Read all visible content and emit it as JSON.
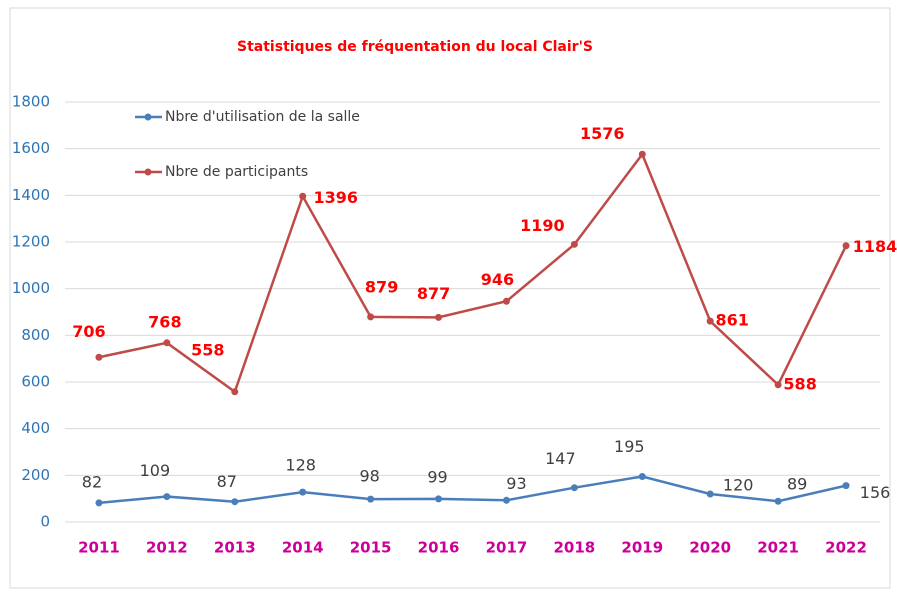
{
  "chart_data": {
    "type": "line",
    "title": "Statistiques de fréquentation du local Clair'S",
    "categories": [
      "2011",
      "2012",
      "2013",
      "2014",
      "2015",
      "2016",
      "2017",
      "2018",
      "2019",
      "2020",
      "2021",
      "2022"
    ],
    "series": [
      {
        "name": "Nbre d'utilisation de la salle",
        "color": "#4a7ebb",
        "values": [
          82,
          109,
          87,
          128,
          98,
          99,
          93,
          147,
          195,
          120,
          89,
          156
        ]
      },
      {
        "name": "Nbre de participants",
        "color": "#be4b48",
        "values": [
          706,
          768,
          558,
          1396,
          879,
          877,
          946,
          1190,
          1576,
          861,
          588,
          1184
        ]
      }
    ],
    "ylim": [
      0,
      1800
    ],
    "yticks": [
      0,
      200,
      400,
      600,
      800,
      1000,
      1200,
      1400,
      1600,
      1800
    ],
    "grid": true
  }
}
